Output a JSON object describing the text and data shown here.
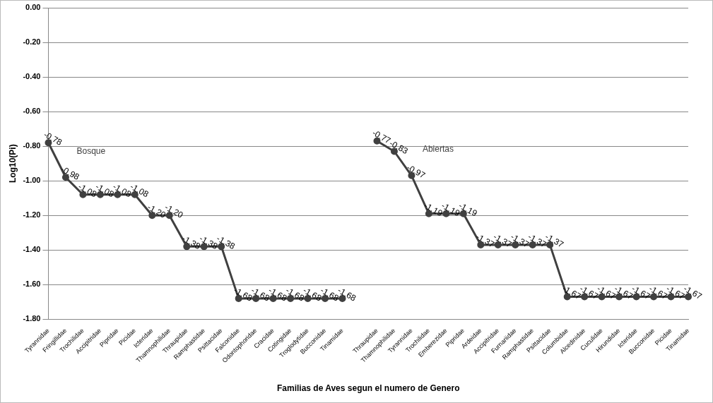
{
  "chart_data": {
    "type": "line",
    "xlabel": "Familias de Aves segun el numero de Genero",
    "ylabel": "Log10(Pi)",
    "categories": [
      "Tyrannidae",
      "Fringillidae",
      "Trochilidae",
      "Accipitridae",
      "Pipridae",
      "Picidae",
      "Icteridae",
      "Thamnophilidae",
      "Thraupidae",
      "Ramphastidae",
      "Psittacidae",
      "Falconidae",
      "Odontophoridae",
      "Cracidae",
      "Cotingidae",
      "Troglodytidae",
      "Bucconidae",
      "Tinamidae",
      null,
      "Thraupidae",
      "Thamnophilidae",
      "Tyrannidae",
      "Trochilidae",
      "Emberezidae",
      "Pipridae",
      "Ardeidae",
      "Accipitridae",
      "Furnariidae",
      "Ramphastidae",
      "Psittacidae",
      "Columbidae",
      "Alcedinidae",
      "Cuculidae",
      "Hirundidae",
      "Icteridae",
      "Bucconidae",
      "Picidae",
      "Tinamidae"
    ],
    "series": [
      {
        "name": "Bosque",
        "color": "#404040",
        "values": [
          -0.78,
          -0.98,
          -1.08,
          -1.08,
          -1.08,
          -1.08,
          -1.2,
          -1.2,
          -1.38,
          -1.38,
          -1.38,
          -1.68,
          -1.68,
          -1.68,
          -1.68,
          -1.68,
          -1.68,
          -1.68,
          null,
          null,
          null,
          null,
          null,
          null,
          null,
          null,
          null,
          null,
          null,
          null,
          null,
          null,
          null,
          null,
          null,
          null,
          null,
          null
        ],
        "value_labels": [
          "-0.78",
          "-0.98",
          "-1.08",
          "-1.08",
          "-1.08",
          "-1.08",
          "-1.20",
          "-1.20",
          "-1.38",
          "-1.38",
          "-1.38",
          "-1.68",
          "-1.68",
          "-1.68",
          "-1.68",
          "-1.68",
          "-1.68",
          "-1.68",
          null,
          null,
          null,
          null,
          null,
          null,
          null,
          null,
          null,
          null,
          null,
          null,
          null,
          null,
          null,
          null,
          null,
          null,
          null,
          null
        ]
      },
      {
        "name": "Abiertas",
        "color": "#404040",
        "values": [
          null,
          null,
          null,
          null,
          null,
          null,
          null,
          null,
          null,
          null,
          null,
          null,
          null,
          null,
          null,
          null,
          null,
          null,
          null,
          -0.77,
          -0.83,
          -0.97,
          -1.19,
          -1.19,
          -1.19,
          -1.37,
          -1.37,
          -1.37,
          -1.37,
          -1.37,
          -1.67,
          -1.67,
          -1.67,
          -1.67,
          -1.67,
          -1.67,
          -1.67,
          -1.67
        ],
        "value_labels": [
          null,
          null,
          null,
          null,
          null,
          null,
          null,
          null,
          null,
          null,
          null,
          null,
          null,
          null,
          null,
          null,
          null,
          null,
          null,
          "-0.77",
          "-0.83",
          "-0.97",
          "-1.19",
          "-1.19",
          "-1.19",
          "-1.37",
          "-1.37",
          "-1.37",
          "-1.37",
          "-1.37",
          "-1.67",
          "-1.67",
          "-1.67",
          "-1.67",
          "-1.67",
          "-1.67",
          "-1.67",
          "-1.67"
        ]
      }
    ],
    "ylim": [
      -1.8,
      0
    ],
    "yticks": [
      {
        "value": 0,
        "label": "0.00"
      },
      {
        "value": -0.2,
        "label": "-0.20"
      },
      {
        "value": -0.4,
        "label": "-0.40"
      },
      {
        "value": -0.6,
        "label": "-0.60"
      },
      {
        "value": -0.8,
        "label": "-0.80"
      },
      {
        "value": -1,
        "label": "-1.00"
      },
      {
        "value": -1.2,
        "label": "-1.20"
      },
      {
        "value": -1.4,
        "label": "-1.40"
      },
      {
        "value": -1.6,
        "label": "-1.60"
      },
      {
        "value": -1.8,
        "label": "-1.80"
      }
    ],
    "grid": "y",
    "marker": "circle",
    "line_style": "solid",
    "legend": false
  }
}
